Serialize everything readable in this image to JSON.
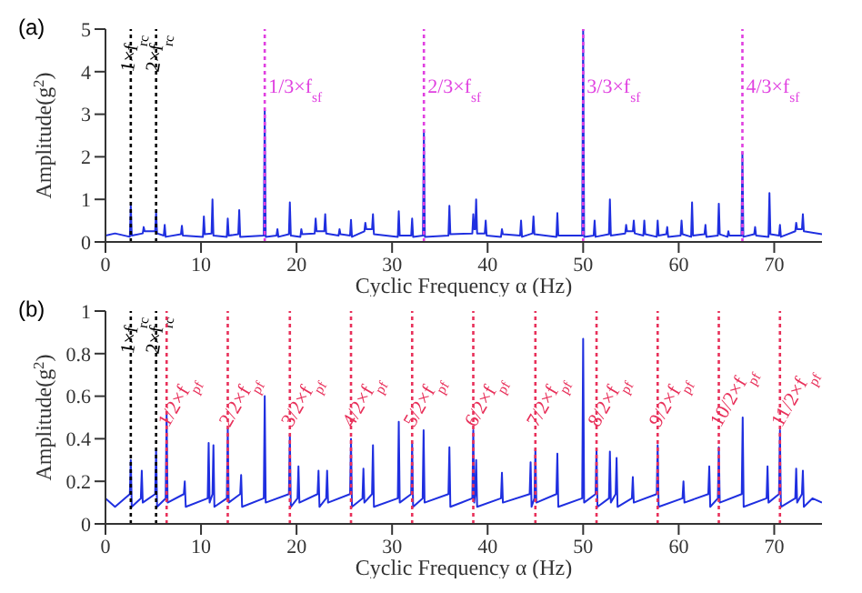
{
  "chart_data": [
    {
      "type": "line",
      "title": "(a)",
      "xlabel": "Cyclic Frequency α (Hz)",
      "ylabel": "Amplitude(g$^{2}$)",
      "xlim": [
        0,
        75
      ],
      "xticks": [
        0,
        10,
        20,
        30,
        40,
        50,
        60,
        70
      ],
      "ylim": [
        0,
        5
      ],
      "yticks": [
        0,
        1,
        2,
        3,
        4,
        5
      ],
      "series": [
        {
          "color": "#1f2fe0",
          "x": [
            0,
            1,
            2.55,
            2.65,
            2.75,
            3.9,
            4,
            4.1,
            5.2,
            5.3,
            5.4,
            6.1,
            6.2,
            6.3,
            7.9,
            8,
            8.1,
            10.2,
            10.3,
            10.4,
            11.1,
            11.2,
            11.3,
            12.7,
            12.8,
            12.9,
            13.9,
            14,
            14.1,
            16.57,
            16.67,
            16.77,
            17.9,
            18,
            18.1,
            19.2,
            19.3,
            19.4,
            20.4,
            20.5,
            20.6,
            21.9,
            22,
            22.1,
            22.9,
            23,
            23.1,
            24.4,
            24.5,
            24.6,
            25.6,
            25.7,
            25.8,
            27.1,
            27.2,
            27.3,
            27.9,
            28,
            28.1,
            30.6,
            30.7,
            30.8,
            32,
            32.1,
            32.2,
            33.23,
            33.33,
            33.43,
            35.9,
            36,
            36.1,
            38.4,
            38.5,
            38.6,
            38.7,
            38.8,
            38.9,
            39.7,
            39.8,
            39.9,
            41.4,
            41.5,
            41.6,
            43.4,
            43.5,
            43.6,
            44.7,
            44.8,
            44.9,
            47.2,
            47.3,
            47.4,
            49.9,
            50,
            50.1,
            51.1,
            51.2,
            51.3,
            52.7,
            52.8,
            52.9,
            54.4,
            54.5,
            54.6,
            55.2,
            55.3,
            55.4,
            56.3,
            56.4,
            56.5,
            57.7,
            57.8,
            57.9,
            58.7,
            58.8,
            58.9,
            60.2,
            60.3,
            60.4,
            61.3,
            61.4,
            61.5,
            62.7,
            62.8,
            62.9,
            64.1,
            64.2,
            64.3,
            65.1,
            65.2,
            65.3,
            66.57,
            66.67,
            66.77,
            67.9,
            68,
            68.1,
            69.4,
            69.5,
            69.6,
            70.5,
            70.6,
            70.7,
            72.2,
            72.3,
            72.4,
            72.9,
            73,
            73.1,
            75
          ],
          "values": [
            0.15,
            0.2,
            0.12,
            0.85,
            0.15,
            0.2,
            0.35,
            0.25,
            0.25,
            0.7,
            0.2,
            0.15,
            0.4,
            0.12,
            0.18,
            0.38,
            0.15,
            0.12,
            0.6,
            0.18,
            0.2,
            1.0,
            0.15,
            0.12,
            0.55,
            0.15,
            0.18,
            0.75,
            0.12,
            0.15,
            3.1,
            0.12,
            0.15,
            0.3,
            0.12,
            0.18,
            0.93,
            0.15,
            0.12,
            0.3,
            0.18,
            0.2,
            0.55,
            0.25,
            0.25,
            0.65,
            0.2,
            0.15,
            0.3,
            0.18,
            0.15,
            0.52,
            0.12,
            0.25,
            0.45,
            0.3,
            0.3,
            0.65,
            0.18,
            0.12,
            0.72,
            0.15,
            0.15,
            0.55,
            0.12,
            0.15,
            2.6,
            0.12,
            0.15,
            0.85,
            0.18,
            0.2,
            0.65,
            0.3,
            0.3,
            1.0,
            0.2,
            0.2,
            0.5,
            0.15,
            0.12,
            0.3,
            0.18,
            0.15,
            0.5,
            0.12,
            0.2,
            0.6,
            0.18,
            0.12,
            0.68,
            0.15,
            0.15,
            5,
            0.12,
            0.15,
            0.5,
            0.12,
            0.18,
            1.0,
            0.15,
            0.2,
            0.4,
            0.25,
            0.25,
            0.5,
            0.2,
            0.15,
            0.5,
            0.18,
            0.12,
            0.5,
            0.15,
            0.18,
            0.35,
            0.12,
            0.15,
            0.5,
            0.18,
            0.12,
            0.93,
            0.15,
            0.18,
            0.4,
            0.12,
            0.15,
            0.9,
            0.18,
            0.12,
            0.25,
            0.15,
            0.15,
            2.1,
            0.12,
            0.18,
            0.35,
            0.15,
            0.12,
            1.15,
            0.18,
            0.15,
            0.4,
            0.12,
            0.25,
            0.45,
            0.3,
            0.3,
            0.65,
            0.25,
            0.18
          ]
        }
      ],
      "ref_lines": [
        {
          "axis": "x",
          "value": 2.65,
          "label": "1×f$_{rc}$",
          "color": "#000000",
          "line_style": "dotted"
        },
        {
          "axis": "x",
          "value": 5.3,
          "label": "2×f$_{rc}$",
          "color": "#000000",
          "line_style": "dotted"
        },
        {
          "axis": "x",
          "value": 16.67,
          "label": "1/3×f$_{sf}$",
          "color": "#e040e0",
          "line_style": "dotted"
        },
        {
          "axis": "x",
          "value": 33.33,
          "label": "2/3×f$_{sf}$",
          "color": "#e040e0",
          "line_style": "dotted"
        },
        {
          "axis": "x",
          "value": 50,
          "label": "3/3×f$_{sf}$",
          "color": "#e040e0",
          "line_style": "dotted"
        },
        {
          "axis": "x",
          "value": 66.67,
          "label": "4/3×f$_{sf}$",
          "color": "#e040e0",
          "line_style": "dotted"
        }
      ]
    },
    {
      "type": "line",
      "title": "(b)",
      "xlabel": "Cyclic Frequency α (Hz)",
      "ylabel": "Amplitude(g$^{2}$)",
      "xlim": [
        0,
        75
      ],
      "xticks": [
        0,
        10,
        20,
        30,
        40,
        50,
        60,
        70
      ],
      "ylim": [
        0,
        1
      ],
      "yticks": [
        0,
        0.2,
        0.4,
        0.6,
        0.8,
        1
      ],
      "series": [
        {
          "color": "#1f2fe0",
          "x": [
            0,
            1,
            2.55,
            2.65,
            2.75,
            3.7,
            3.8,
            3.9,
            5.2,
            5.3,
            5.4,
            6.3,
            6.4,
            6.5,
            8.2,
            8.3,
            8.4,
            10.7,
            10.8,
            10.9,
            11.2,
            11.3,
            11.4,
            12.7,
            12.8,
            12.9,
            14.1,
            14.2,
            14.3,
            16.57,
            16.67,
            16.77,
            19.2,
            19.3,
            19.4,
            20.1,
            20.2,
            20.3,
            22.2,
            22.3,
            22.4,
            23.1,
            23.2,
            23.3,
            25.6,
            25.7,
            25.8,
            26.9,
            27,
            27.1,
            27.9,
            28,
            28.1,
            30.6,
            30.7,
            30.8,
            32,
            32.1,
            32.2,
            33.2,
            33.3,
            33.4,
            35.9,
            36,
            36.1,
            38.4,
            38.5,
            38.6,
            38.7,
            38.8,
            38.9,
            41.4,
            41.5,
            41.6,
            44.4,
            44.5,
            44.6,
            44.9,
            45,
            45.1,
            47.2,
            47.3,
            47.4,
            49.9,
            50,
            50.1,
            51.3,
            51.4,
            51.5,
            52.7,
            52.8,
            52.9,
            53.4,
            53.5,
            53.6,
            55.1,
            55.2,
            55.3,
            57.7,
            57.8,
            57.9,
            60.4,
            60.5,
            60.6,
            63.1,
            63.2,
            63.3,
            64.1,
            64.2,
            64.3,
            66.6,
            66.7,
            66.8,
            69.2,
            69.3,
            69.4,
            70.5,
            70.6,
            70.7,
            72.2,
            72.3,
            72.4,
            72.9,
            73,
            73.1,
            74,
            75
          ],
          "values": [
            0.12,
            0.08,
            0.14,
            0.3,
            0.08,
            0.12,
            0.25,
            0.1,
            0.14,
            0.35,
            0.08,
            0.12,
            0.52,
            0.1,
            0.14,
            0.2,
            0.08,
            0.12,
            0.38,
            0.1,
            0.14,
            0.37,
            0.08,
            0.12,
            0.45,
            0.1,
            0.14,
            0.23,
            0.08,
            0.12,
            0.6,
            0.1,
            0.14,
            0.42,
            0.08,
            0.12,
            0.27,
            0.1,
            0.14,
            0.25,
            0.08,
            0.12,
            0.25,
            0.1,
            0.14,
            0.4,
            0.08,
            0.12,
            0.26,
            0.1,
            0.14,
            0.37,
            0.08,
            0.12,
            0.48,
            0.1,
            0.14,
            0.38,
            0.08,
            0.12,
            0.44,
            0.1,
            0.14,
            0.36,
            0.08,
            0.12,
            0.44,
            0.1,
            0.14,
            0.3,
            0.08,
            0.12,
            0.24,
            0.1,
            0.14,
            0.29,
            0.08,
            0.12,
            0.35,
            0.1,
            0.14,
            0.33,
            0.08,
            0.12,
            0.87,
            0.1,
            0.14,
            0.35,
            0.08,
            0.12,
            0.34,
            0.1,
            0.14,
            0.31,
            0.08,
            0.12,
            0.22,
            0.1,
            0.14,
            0.37,
            0.08,
            0.12,
            0.2,
            0.1,
            0.14,
            0.27,
            0.08,
            0.12,
            0.36,
            0.1,
            0.14,
            0.5,
            0.08,
            0.12,
            0.27,
            0.1,
            0.14,
            0.44,
            0.08,
            0.12,
            0.26,
            0.1,
            0.14,
            0.25,
            0.08,
            0.12,
            0.1
          ]
        }
      ],
      "ref_lines": [
        {
          "axis": "x",
          "value": 2.65,
          "label": "1×f$_{rc}$",
          "color": "#000000",
          "line_style": "dotted"
        },
        {
          "axis": "x",
          "value": 5.3,
          "label": "2×f$_{rc}$",
          "color": "#000000",
          "line_style": "dotted"
        },
        {
          "axis": "x",
          "value": 6.4,
          "label": "1/2×f$_{pf}$",
          "color": "#e8305a",
          "line_style": "dotted"
        },
        {
          "axis": "x",
          "value": 12.8,
          "label": "2/2×f$_{pf}$",
          "color": "#e8305a",
          "line_style": "dotted"
        },
        {
          "axis": "x",
          "value": 19.3,
          "label": "3/2×f$_{pf}$",
          "color": "#e8305a",
          "line_style": "dotted"
        },
        {
          "axis": "x",
          "value": 25.7,
          "label": "4/2×f$_{pf}$",
          "color": "#e8305a",
          "line_style": "dotted"
        },
        {
          "axis": "x",
          "value": 32.1,
          "label": "5/2×f$_{pf}$",
          "color": "#e8305a",
          "line_style": "dotted"
        },
        {
          "axis": "x",
          "value": 38.5,
          "label": "6/2×f$_{pf}$",
          "color": "#e8305a",
          "line_style": "dotted"
        },
        {
          "axis": "x",
          "value": 45,
          "label": "7/2×f$_{pf}$",
          "color": "#e8305a",
          "line_style": "dotted"
        },
        {
          "axis": "x",
          "value": 51.4,
          "label": "8/2×f$_{pf}$",
          "color": "#e8305a",
          "line_style": "dotted"
        },
        {
          "axis": "x",
          "value": 57.8,
          "label": "9/2×f$_{pf}$",
          "color": "#e8305a",
          "line_style": "dotted"
        },
        {
          "axis": "x",
          "value": 64.2,
          "label": "10/2×f$_{pf}$",
          "color": "#e8305a",
          "line_style": "dotted"
        },
        {
          "axis": "x",
          "value": 70.6,
          "label": "11/2×f$_{pf}$",
          "color": "#e8305a",
          "line_style": "dotted"
        }
      ]
    }
  ]
}
